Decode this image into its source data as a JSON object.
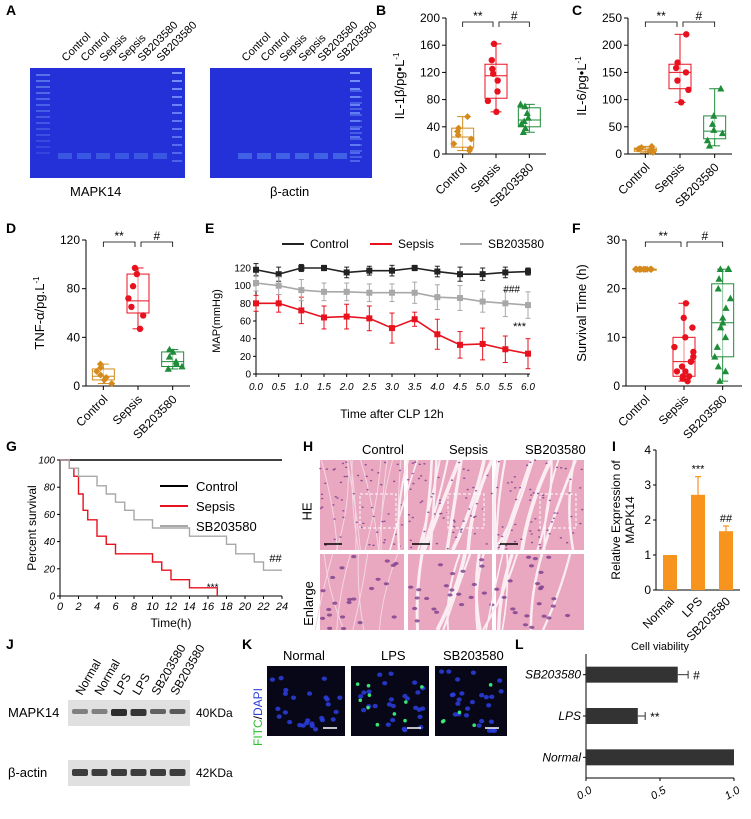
{
  "panel_labels": [
    "A",
    "B",
    "C",
    "D",
    "E",
    "F",
    "G",
    "H",
    "I",
    "J",
    "K",
    "L"
  ],
  "panelA": {
    "lanes": [
      "Control",
      "Control",
      "Sepsis",
      "Sepsis",
      "SB203580",
      "SB203580"
    ],
    "gel1_caption": "MAPK14",
    "gel2_caption": "β-actin",
    "colors": {
      "gel": "#2430d8",
      "band": "#4a72e8"
    }
  },
  "common": {
    "groups": [
      "Control",
      "Sepsis",
      "SB203580"
    ],
    "group_colors": {
      "Control": "#d48a1c",
      "Sepsis": "#e8111e",
      "SB203580": "#1f8c3a"
    },
    "sig_control_sepsis": "**",
    "sig_sepsis_sb": "#"
  },
  "panelB": {
    "ylabel": "IL-1β/pg•L",
    "ylabel_sup": "-1",
    "chart_data": {
      "type": "box",
      "title": "",
      "ylabel": "IL-1β/pg•L-1",
      "ylim": [
        0,
        200
      ],
      "yticks": [
        "0",
        "40",
        "80",
        "120",
        "160",
        "200"
      ],
      "categories": [
        "Control",
        "Sepsis",
        "SB203580"
      ],
      "boxes": [
        {
          "name": "Control",
          "min": 5,
          "q1": 10,
          "median": 25,
          "q3": 38,
          "max": 55,
          "points": [
            5,
            8,
            15,
            22,
            28,
            33,
            38,
            55
          ]
        },
        {
          "name": "Sepsis",
          "min": 62,
          "q1": 82,
          "median": 115,
          "q3": 132,
          "max": 162,
          "points": [
            62,
            78,
            92,
            108,
            118,
            125,
            138,
            162
          ]
        },
        {
          "name": "SB203580",
          "min": 32,
          "q1": 40,
          "median": 50,
          "q3": 68,
          "max": 73,
          "points": [
            32,
            38,
            44,
            48,
            53,
            60,
            70,
            73
          ]
        }
      ]
    }
  },
  "panelC": {
    "ylabel": "IL-6/pg•L",
    "ylabel_sup": "-1",
    "chart_data": {
      "type": "box",
      "title": "",
      "ylabel": "IL-6/pg•L-1",
      "ylim": [
        0,
        250
      ],
      "yticks": [
        "0",
        "50",
        "100",
        "150",
        "200",
        "250"
      ],
      "categories": [
        "Control",
        "Sepsis",
        "SB203580"
      ],
      "boxes": [
        {
          "name": "Control",
          "min": 2,
          "q1": 5,
          "median": 8,
          "q3": 11,
          "max": 14,
          "points": [
            3,
            5,
            7,
            9,
            10,
            12,
            14
          ]
        },
        {
          "name": "Sepsis",
          "min": 95,
          "q1": 120,
          "median": 150,
          "q3": 165,
          "max": 220,
          "points": [
            95,
            118,
            135,
            150,
            158,
            168,
            220
          ]
        },
        {
          "name": "SB203580",
          "min": 15,
          "q1": 28,
          "median": 42,
          "q3": 70,
          "max": 120,
          "points": [
            15,
            25,
            38,
            44,
            55,
            70,
            120
          ]
        }
      ]
    }
  },
  "panelD": {
    "ylabel": "TNF-α/pg.L",
    "ylabel_sup": "-1",
    "chart_data": {
      "type": "box",
      "title": "",
      "ylabel": "TNF-α/pg.L-1",
      "ylim": [
        0,
        120
      ],
      "yticks": [
        "0",
        "40",
        "80",
        "120"
      ],
      "categories": [
        "Control",
        "Sepsis",
        "SB203580"
      ],
      "boxes": [
        {
          "name": "Control",
          "min": 2,
          "q1": 5,
          "median": 8,
          "q3": 14,
          "max": 18,
          "points": [
            2,
            5,
            7,
            9,
            12,
            15,
            18
          ]
        },
        {
          "name": "Sepsis",
          "min": 47,
          "q1": 60,
          "median": 70,
          "q3": 92,
          "max": 97,
          "points": [
            47,
            58,
            65,
            72,
            82,
            92,
            97
          ]
        },
        {
          "name": "SB203580",
          "min": 14,
          "q1": 16,
          "median": 20,
          "q3": 28,
          "max": 30,
          "points": [
            14,
            16,
            18,
            20,
            24,
            28,
            30
          ]
        }
      ]
    }
  },
  "panelE": {
    "xlabel": "Time after CLP 12h",
    "ylabel": "MAP(mmHg)",
    "annot_sb": "###",
    "annot_sepsis": "***",
    "chart_data": {
      "type": "line",
      "title": "",
      "xlabel": "Time after CLP 12h",
      "ylabel": "MAP(mmHg)",
      "xlim": [
        0,
        6
      ],
      "ylim": [
        0,
        120
      ],
      "x": [
        0,
        0.5,
        1,
        1.5,
        2,
        2.5,
        3,
        3.5,
        4,
        4.5,
        5,
        5.5,
        6
      ],
      "xticks": [
        "0.0",
        "0.5",
        "1.0",
        "1.5",
        "2.0",
        "2.5",
        "3.0",
        "3.5",
        "4.0",
        "4.5",
        "5.0",
        "5.5",
        "6.0"
      ],
      "yticks": [
        "0",
        "20",
        "40",
        "60",
        "80",
        "100",
        "120"
      ],
      "series": [
        {
          "name": "Control",
          "color": "#222222",
          "values": [
            118,
            113,
            120,
            120,
            115,
            117,
            117,
            120,
            116,
            113,
            113,
            115,
            116
          ],
          "errors": [
            7,
            8,
            4,
            3,
            6,
            5,
            6,
            3,
            6,
            8,
            7,
            6,
            4
          ]
        },
        {
          "name": "Sepsis",
          "color": "#e8111e",
          "values": [
            80,
            80,
            72,
            64,
            65,
            63,
            52,
            62,
            45,
            33,
            34,
            28,
            23
          ],
          "errors": [
            9,
            10,
            15,
            13,
            14,
            14,
            17,
            8,
            17,
            15,
            18,
            15,
            17
          ]
        },
        {
          "name": "SB203580",
          "color": "#a8a8a8",
          "values": [
            103,
            100,
            95,
            93,
            93,
            92,
            92,
            92,
            87,
            86,
            82,
            80,
            78
          ],
          "errors": [
            9,
            10,
            12,
            10,
            10,
            10,
            10,
            12,
            14,
            14,
            12,
            15,
            15
          ]
        }
      ]
    }
  },
  "panelF": {
    "ylabel": "Survival Time (h)",
    "chart_data": {
      "type": "box",
      "title": "",
      "ylabel": "Survival Time (h)",
      "ylim": [
        0,
        30
      ],
      "yticks": [
        "0",
        "10",
        "20",
        "30"
      ],
      "categories": [
        "Control",
        "Sepsis",
        "SB203580"
      ],
      "boxes": [
        {
          "name": "Control",
          "min": 24,
          "q1": 24,
          "median": 24,
          "q3": 24,
          "max": 24,
          "points": [
            24,
            24,
            24,
            24,
            24,
            24,
            24,
            24,
            24,
            24,
            24,
            24,
            24,
            24,
            24,
            24
          ]
        },
        {
          "name": "Sepsis",
          "min": 1,
          "q1": 2,
          "median": 5,
          "q3": 10,
          "max": 17,
          "points": [
            1,
            1.5,
            2,
            2,
            3,
            3,
            4,
            5,
            5,
            6,
            7,
            8,
            10,
            12,
            14,
            17
          ]
        },
        {
          "name": "SB203580",
          "min": 1,
          "q1": 6,
          "median": 13,
          "q3": 21,
          "max": 24,
          "points": [
            1,
            3,
            4,
            6,
            8,
            10,
            12,
            13,
            14,
            16,
            18,
            20,
            22,
            24,
            24,
            24
          ]
        }
      ]
    }
  },
  "panelG": {
    "ylabel": "Percent survival",
    "xlabel": "Time(h)",
    "annot_sepsis": "***",
    "annot_sb": "##",
    "chart_data": {
      "type": "line",
      "title": "",
      "xlabel": "Time(h)",
      "ylabel": "Percent survival",
      "xlim": [
        0,
        24
      ],
      "ylim": [
        0,
        100
      ],
      "xticks": [
        "0",
        "2",
        "4",
        "6",
        "8",
        "10",
        "12",
        "14",
        "16",
        "18",
        "20",
        "22",
        "24"
      ],
      "yticks": [
        "0",
        "20",
        "40",
        "60",
        "80",
        "100"
      ],
      "series": [
        {
          "name": "Control",
          "color": "#000000",
          "steps": [
            [
              0,
              100
            ],
            [
              24,
              100
            ]
          ]
        },
        {
          "name": "Sepsis",
          "color": "#e8111e",
          "steps": [
            [
              0,
              100
            ],
            [
              1,
              94
            ],
            [
              1.5,
              88
            ],
            [
              2,
              75
            ],
            [
              2.5,
              63
            ],
            [
              3,
              56
            ],
            [
              4,
              44
            ],
            [
              5,
              38
            ],
            [
              6,
              31
            ],
            [
              10,
              25
            ],
            [
              11,
              19
            ],
            [
              12,
              12
            ],
            [
              14,
              6
            ],
            [
              17,
              0
            ]
          ]
        },
        {
          "name": "SB203580",
          "color": "#a8a8a8",
          "steps": [
            [
              0,
              100
            ],
            [
              1,
              94
            ],
            [
              2,
              88
            ],
            [
              4,
              81
            ],
            [
              5,
              75
            ],
            [
              6,
              69
            ],
            [
              7,
              63
            ],
            [
              8,
              56
            ],
            [
              10,
              50
            ],
            [
              14,
              44
            ],
            [
              18,
              38
            ],
            [
              19,
              31
            ],
            [
              21,
              25
            ],
            [
              22,
              19
            ],
            [
              24,
              19
            ]
          ]
        }
      ]
    }
  },
  "panelH": {
    "columns": [
      "Control",
      "Sepsis",
      "SB203580"
    ],
    "rows": [
      "HE",
      "Enlarge"
    ]
  },
  "panelI": {
    "ylabel": "Relative Expression of",
    "ylabel2": "MAPK14",
    "chart_data": {
      "type": "bar",
      "title": "",
      "ylabel": "Relative Expression of MAPK14",
      "ylim": [
        0,
        4
      ],
      "yticks": [
        "0",
        "1",
        "2",
        "3",
        "4"
      ],
      "categories": [
        "Normal",
        "LPS",
        "SB203580"
      ],
      "values": [
        1,
        2.72,
        1.68
      ],
      "errors": [
        0,
        0.52,
        0.15
      ],
      "annotations": [
        "",
        "***",
        "##"
      ],
      "color": "#f7941d"
    }
  },
  "panelJ": {
    "lanes": [
      "Normal",
      "Normal",
      "LPS",
      "LPS",
      "SB203580",
      "SB203580"
    ],
    "rows": [
      {
        "label": "MAPK14",
        "size": "40KDa",
        "intensities": [
          0.35,
          0.35,
          0.9,
          0.85,
          0.55,
          0.6
        ]
      },
      {
        "label": "β-actin",
        "size": "42KDa",
        "intensities": [
          0.8,
          0.8,
          0.8,
          0.8,
          0.8,
          0.8
        ]
      }
    ]
  },
  "panelK": {
    "columns": [
      "Normal",
      "LPS",
      "SB203580"
    ],
    "side_label_green": "FITC",
    "side_label_sep": "/",
    "side_label_blue": "DAPI"
  },
  "panelL": {
    "chart_data": {
      "type": "bar",
      "orientation": "horizontal",
      "title": "Cell viability",
      "xlim": [
        0,
        1
      ],
      "xticks": [
        "0.0",
        "0.5",
        "1.0"
      ],
      "categories": [
        "SB203580",
        "LPS",
        "Normal"
      ],
      "values": [
        0.62,
        0.35,
        1.0
      ],
      "errors": [
        0.07,
        0.05,
        0
      ],
      "annotations": [
        "#",
        "**",
        ""
      ],
      "color": "#333333"
    }
  }
}
